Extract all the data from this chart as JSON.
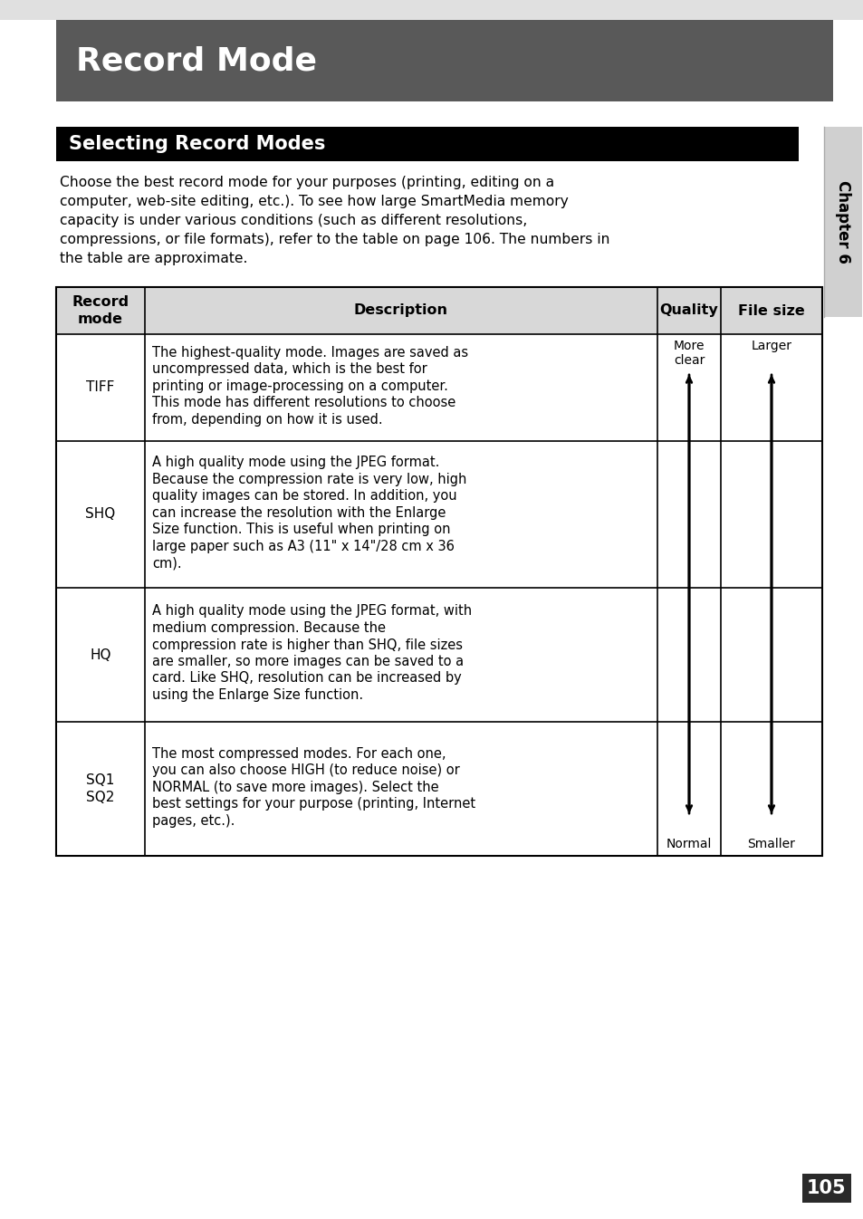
{
  "page_bg": "#ffffff",
  "title_text": "Record Mode",
  "title_bg": "#595959",
  "title_fg": "#ffffff",
  "section_title": "Selecting Record Modes",
  "section_bg": "#000000",
  "section_fg": "#ffffff",
  "body_text": "Choose the best record mode for your purposes (printing, editing on a\ncomputer, web-site editing, etc.). To see how large SmartMedia memory\ncapacity is under various conditions (such as different resolutions,\ncompressions, or file formats), refer to the table on page 106. The numbers in\nthe table are approximate.",
  "table_rows": [
    {
      "mode": "TIFF",
      "desc": "The highest-quality mode. Images are saved as\nuncompressed data, which is the best for\nprinting or image-processing on a computer.\nThis mode has different resolutions to choose\nfrom, depending on how it is used."
    },
    {
      "mode": "SHQ",
      "desc": "A high quality mode using the JPEG format.\nBecause the compression rate is very low, high\nquality images can be stored. In addition, you\ncan increase the resolution with the Enlarge\nSize function. This is useful when printing on\nlarge paper such as A3 (11\" x 14\"/28 cm x 36\ncm)."
    },
    {
      "mode": "HQ",
      "desc": "A high quality mode using the JPEG format, with\nmedium compression. Because the\ncompression rate is higher than SHQ, file sizes\nare smaller, so more images can be saved to a\ncard. Like SHQ, resolution can be increased by\nusing the Enlarge Size function."
    },
    {
      "mode": "SQ1\nSQ2",
      "desc": "The most compressed modes. For each one,\nyou can also choose HIGH (to reduce noise) or\nNORMAL (to save more images). Select the\nbest settings for your purpose (printing, Internet\npages, etc.)."
    }
  ],
  "quality_top": "More\nclear",
  "quality_bottom": "Normal",
  "filesize_top": "Larger",
  "filesize_bottom": "Smaller",
  "chapter_text": "Chapter 6",
  "page_number": "105",
  "page_num_bg": "#2a2a2a",
  "page_num_fg": "#ffffff",
  "table_line_color": "#000000",
  "header_row_bg": "#d8d8d8",
  "top_strip_bg": "#e0e0e0"
}
